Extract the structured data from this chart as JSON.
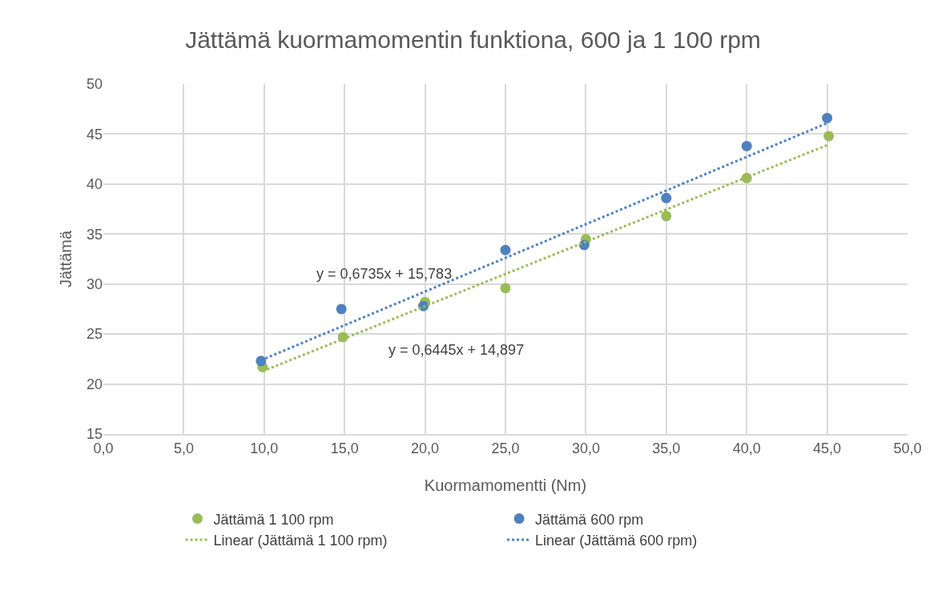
{
  "chart_data": {
    "type": "scatter",
    "title": "Jättämä kuormamomentin funktiona, 600 ja 1 100 rpm",
    "xlabel": "Kuormamomentti (Nm)",
    "ylabel": "Jättämä",
    "series": [
      {
        "name": "Jättämä 1 100 rpm",
        "color": "#9bbb59",
        "x": [
          9.9,
          14.9,
          20,
          25,
          30,
          35,
          40,
          45.1
        ],
        "values": [
          21.7,
          24.7,
          28.2,
          29.6,
          34.5,
          36.8,
          40.6,
          44.8
        ]
      },
      {
        "name": "Jättämä 600 rpm",
        "color": "#4f81bd",
        "x": [
          9.8,
          14.8,
          19.9,
          25,
          29.9,
          35,
          40,
          45
        ],
        "values": [
          22.3,
          27.5,
          27.8,
          33.4,
          33.9,
          38.6,
          43.8,
          46.6
        ]
      },
      {
        "name": "Linear (Jättämä 1 100 rpm)",
        "type": "line",
        "line_style": "dotted",
        "marker": "none",
        "color": "#9bbb59",
        "x": [
          9.9,
          45.1
        ],
        "values": [
          21.28,
          43.96
        ]
      },
      {
        "name": "Linear (Jättämä 600 rpm)",
        "type": "line",
        "line_style": "dotted",
        "marker": "none",
        "color": "#4f81bd",
        "x": [
          9.8,
          45
        ],
        "values": [
          22.38,
          46.09
        ]
      }
    ],
    "annotations": [
      "y = 0,6735x + 15,783",
      "y = 0,6445x + 14,897"
    ],
    "xlim": [
      0,
      50
    ],
    "xticks": [
      {
        "value": 0,
        "label": "0,0"
      },
      {
        "value": 5,
        "label": "5,0"
      },
      {
        "value": 10,
        "label": "10,0"
      },
      {
        "value": 15,
        "label": "15,0"
      },
      {
        "value": 20,
        "label": "20,0"
      },
      {
        "value": 25,
        "label": "25,0"
      },
      {
        "value": 30,
        "label": "30,0"
      },
      {
        "value": 35,
        "label": "35,0"
      },
      {
        "value": 40,
        "label": "40,0"
      },
      {
        "value": 45,
        "label": "45,0"
      },
      {
        "value": 50,
        "label": "50,0"
      }
    ],
    "ylim": [
      15,
      50
    ],
    "yticks": [
      15,
      20,
      25,
      30,
      35,
      40,
      45,
      50
    ],
    "grid": true,
    "legend": "bottom",
    "marker": "circle"
  }
}
